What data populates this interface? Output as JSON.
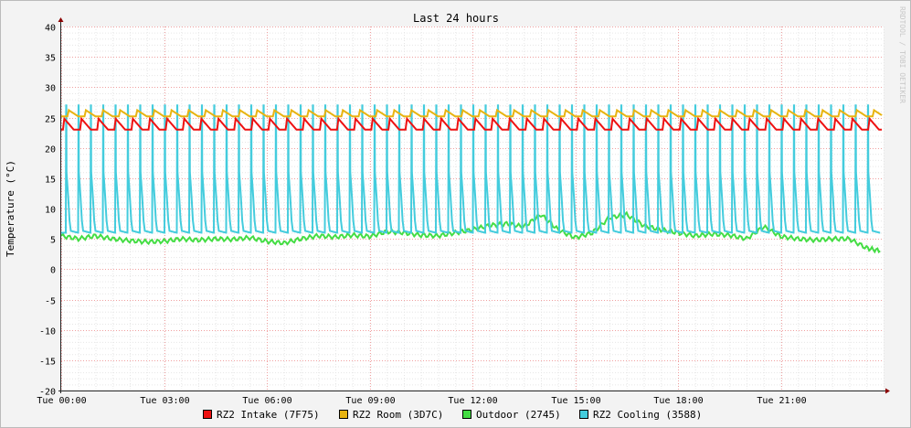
{
  "chart_data": {
    "type": "line",
    "title": "Last 24 hours",
    "ylabel": "Temperature (°C)",
    "xlabel": "",
    "watermark": "RRDTOOL / TOBI OETIKER",
    "ylim": [
      -20,
      40
    ],
    "yticks": [
      40,
      35,
      30,
      25,
      20,
      15,
      10,
      5,
      0,
      -5,
      -10,
      -15,
      -20
    ],
    "xlim_hours": [
      0,
      24
    ],
    "xticks": [
      {
        "hour": 0,
        "label": "Tue 00:00"
      },
      {
        "hour": 3,
        "label": "Tue 03:00"
      },
      {
        "hour": 6,
        "label": "Tue 06:00"
      },
      {
        "hour": 9,
        "label": "Tue 09:00"
      },
      {
        "hour": 12,
        "label": "Tue 12:00"
      },
      {
        "hour": 15,
        "label": "Tue 15:00"
      },
      {
        "hour": 18,
        "label": "Tue 18:00"
      },
      {
        "hour": 21,
        "label": "Tue 21:00"
      }
    ],
    "grid": true,
    "legend_position": "bottom",
    "series": [
      {
        "name": "RZ2 Intake (7F75)",
        "color": "#ee1111",
        "pattern": "sawtooth",
        "period_hours": 0.5,
        "offset_hours": 0.05,
        "low": 23.0,
        "high": 24.8,
        "x_range": [
          0,
          23.95
        ]
      },
      {
        "name": "RZ2 Room (3D7C)",
        "color": "#e8b411",
        "pattern": "sawtooth",
        "period_hours": 0.5,
        "offset_hours": 0.18,
        "low": 25.2,
        "high": 26.2,
        "x_range": [
          0,
          23.95
        ]
      },
      {
        "name": "Outdoor (2745)",
        "color": "#44dd44",
        "pattern": "trace",
        "x": [
          0,
          0.5,
          1,
          1.5,
          2,
          2.5,
          3,
          3.5,
          4,
          4.5,
          5,
          5.5,
          6,
          6.5,
          7,
          7.5,
          8,
          8.5,
          9,
          9.5,
          10,
          10.5,
          11,
          11.5,
          12,
          12.5,
          13,
          13.5,
          14,
          14.5,
          15,
          15.5,
          16,
          16.5,
          17,
          17.5,
          18,
          18.5,
          19,
          19.5,
          20,
          20.5,
          21,
          21.5,
          22,
          22.5,
          23,
          23.5,
          23.9
        ],
        "y": [
          5.5,
          5.0,
          5.5,
          5.0,
          4.7,
          4.5,
          4.6,
          5.0,
          4.8,
          5.0,
          4.9,
          5.2,
          4.6,
          4.3,
          5.0,
          5.5,
          5.3,
          5.6,
          5.4,
          6.2,
          6.0,
          5.6,
          5.5,
          6.0,
          6.5,
          7.2,
          7.5,
          7.0,
          9.0,
          6.5,
          5.2,
          6.0,
          8.5,
          9.0,
          7.2,
          6.5,
          6.0,
          5.5,
          5.8,
          5.6,
          5.0,
          7.0,
          5.4,
          5.0,
          4.8,
          5.0,
          5.0,
          3.5,
          3.0
        ]
      },
      {
        "name": "RZ2 Cooling (3588)",
        "color": "#44ccdd",
        "pattern": "spikes",
        "period_hours": 0.36,
        "offset_hours": 0.15,
        "base": 6.0,
        "mid": 16.0,
        "peak": 27.0,
        "x_range": [
          0,
          23.9
        ]
      }
    ]
  }
}
